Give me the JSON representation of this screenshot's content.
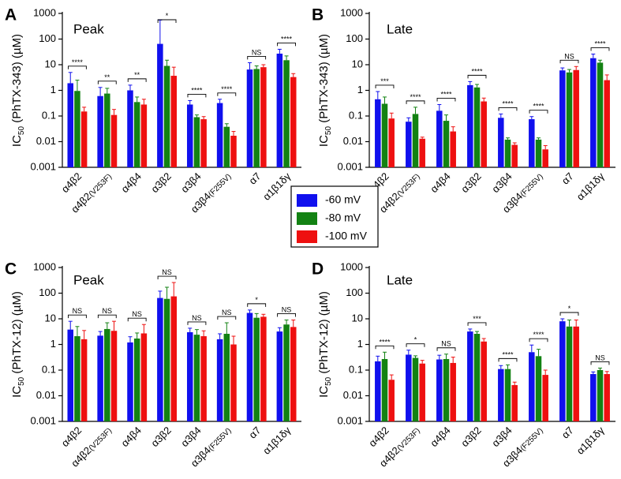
{
  "colors": {
    "s60": "#1010ee",
    "s80": "#138213",
    "s100": "#ee1010"
  },
  "legend": [
    "-60 mV",
    "-80 mV",
    "-100 mV"
  ],
  "y_tick_labels": [
    "0.001",
    "0.01",
    "0.1",
    "1",
    "10",
    "100",
    "1000"
  ],
  "chart_data": [
    {
      "type": "bar",
      "letter": "A",
      "title": "Peak",
      "ylabel": "IC50 (PhTX-343) (µM)",
      "ylabel_parts": {
        "pre": "IC",
        "sub": "50",
        "post": " (PhTX-343) (µM)"
      },
      "yscale": "log",
      "ylim": [
        0.001,
        1000
      ],
      "categories": [
        "α4β2",
        "α4β2(V253F)",
        "α4β4",
        "α3β2",
        "α3β4",
        "α3β4(F255V)",
        "α7",
        "α1β1δγ"
      ],
      "series": [
        {
          "name": "-60 mV",
          "values": [
            1.9,
            0.6,
            1.0,
            65,
            0.28,
            0.32,
            6.5,
            27
          ],
          "err_upper": [
            5.0,
            1.3,
            1.6,
            550,
            0.4,
            0.45,
            12,
            40
          ]
        },
        {
          "name": "-80 mV",
          "values": [
            0.95,
            0.75,
            0.35,
            9,
            0.09,
            0.038,
            6.8,
            15
          ],
          "err_upper": [
            2.5,
            1.2,
            0.55,
            15,
            0.11,
            0.05,
            9,
            22
          ]
        },
        {
          "name": "-100 mV",
          "values": [
            0.15,
            0.11,
            0.28,
            3.7,
            0.075,
            0.017,
            8,
            3.3
          ],
          "err_upper": [
            0.22,
            0.18,
            0.45,
            8,
            0.095,
            0.025,
            10,
            4.5
          ]
        }
      ],
      "significance": [
        "****",
        "**",
        "**",
        "*",
        "****",
        "****",
        "NS",
        "****"
      ]
    },
    {
      "type": "bar",
      "letter": "B",
      "title": "Late",
      "ylabel": "IC50 (PhTX-343) (µM)",
      "ylabel_parts": {
        "pre": "IC",
        "sub": "50",
        "post": " (PhTX-343) (µM)"
      },
      "yscale": "log",
      "ylim": [
        0.001,
        1000
      ],
      "categories": [
        "α4β2",
        "α4β2(V253F)",
        "α4β4",
        "α3β2",
        "α3β4",
        "α3β4(F255V)",
        "α7",
        "α1β1δγ"
      ],
      "series": [
        {
          "name": "-60 mV",
          "values": [
            0.45,
            0.06,
            0.16,
            1.6,
            0.085,
            0.075,
            6.0,
            18
          ],
          "err_upper": [
            0.9,
            0.085,
            0.28,
            2.2,
            0.12,
            0.095,
            7.5,
            26
          ]
        },
        {
          "name": "-80 mV",
          "values": [
            0.3,
            0.12,
            0.065,
            1.3,
            0.012,
            0.012,
            5.0,
            12
          ],
          "err_upper": [
            0.55,
            0.22,
            0.11,
            1.7,
            0.014,
            0.014,
            6.5,
            15
          ]
        },
        {
          "name": "-100 mV",
          "values": [
            0.08,
            0.013,
            0.025,
            0.37,
            0.0075,
            0.005,
            6.2,
            2.5
          ],
          "err_upper": [
            0.13,
            0.015,
            0.038,
            0.5,
            0.009,
            0.007,
            8.5,
            4
          ]
        }
      ],
      "significance": [
        "***",
        "****",
        "****",
        "****",
        "****",
        "****",
        "NS",
        "****"
      ]
    },
    {
      "type": "bar",
      "letter": "C",
      "title": "Peak",
      "ylabel": "IC50 (PhTX-12) (µM)",
      "ylabel_parts": {
        "pre": "IC",
        "sub": "50",
        "post": " (PhTX-12) (µM)"
      },
      "yscale": "log",
      "ylim": [
        0.001,
        1000
      ],
      "categories": [
        "α4β2",
        "α4β2(V253F)",
        "α4β4",
        "α3β2",
        "α3β4",
        "α3β4(F255V)",
        "α7",
        "α1β1δγ"
      ],
      "series": [
        {
          "name": "-60 mV",
          "values": [
            3.8,
            2.2,
            1.2,
            65,
            3.0,
            1.6,
            17,
            3.2
          ],
          "err_upper": [
            8,
            3.2,
            2.0,
            120,
            4.3,
            2.6,
            22,
            4.5
          ]
        },
        {
          "name": "-80 mV",
          "values": [
            2.1,
            4.0,
            1.7,
            60,
            2.4,
            2.6,
            11,
            6.0
          ],
          "err_upper": [
            5,
            7,
            2.8,
            170,
            3.8,
            7,
            16,
            9
          ]
        },
        {
          "name": "-100 mV",
          "values": [
            1.6,
            3.4,
            2.7,
            75,
            2.1,
            1.0,
            12,
            4.8
          ],
          "err_upper": [
            3.5,
            8,
            6,
            260,
            3.4,
            2.1,
            15,
            9
          ]
        }
      ],
      "significance": [
        "NS",
        "NS",
        "NS",
        "NS",
        "NS",
        "NS",
        "*",
        "NS"
      ]
    },
    {
      "type": "bar",
      "letter": "D",
      "title": "Late",
      "ylabel": "IC50 (PhTX-12) (µM)",
      "ylabel_parts": {
        "pre": "IC",
        "sub": "50",
        "post": " (PhTX-12) (µM)"
      },
      "yscale": "log",
      "ylim": [
        0.001,
        1000
      ],
      "categories": [
        "α4β2",
        "α4β2(V253F)",
        "α4β4",
        "α3β2",
        "α3β4",
        "α3β4(F255V)",
        "α7",
        "α1β1δγ"
      ],
      "series": [
        {
          "name": "-60 mV",
          "values": [
            0.22,
            0.4,
            0.26,
            3.2,
            0.11,
            0.5,
            8.0,
            0.07
          ],
          "err_upper": [
            0.35,
            0.6,
            0.38,
            4.0,
            0.15,
            0.95,
            10,
            0.085
          ]
        },
        {
          "name": "-80 mV",
          "values": [
            0.27,
            0.3,
            0.27,
            2.6,
            0.11,
            0.35,
            5.0,
            0.1
          ],
          "err_upper": [
            0.5,
            0.36,
            0.42,
            3.2,
            0.16,
            0.65,
            9,
            0.12
          ]
        },
        {
          "name": "-100 mV",
          "values": [
            0.042,
            0.18,
            0.19,
            1.3,
            0.026,
            0.065,
            5.0,
            0.07
          ],
          "err_upper": [
            0.065,
            0.24,
            0.32,
            1.7,
            0.034,
            0.1,
            9,
            0.088
          ]
        }
      ],
      "significance": [
        "****",
        "*",
        "NS",
        "***",
        "****",
        "****",
        "*",
        "NS"
      ]
    }
  ]
}
